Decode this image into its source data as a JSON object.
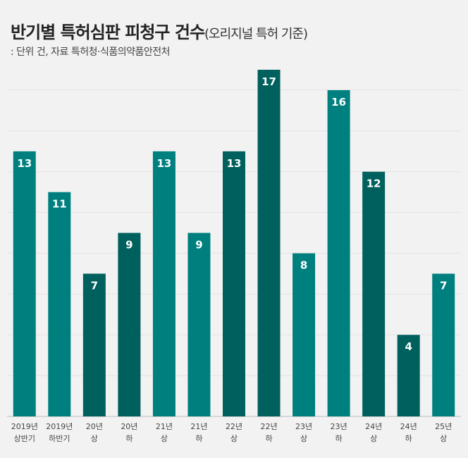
{
  "chart_data": {
    "type": "bar",
    "title": "반기별 특허심판 피청구 건수",
    "title_suffix": "(오리지널 특허 기준)",
    "subtitle": ": 단위 건, 자료 특허청·식품의약품안전처",
    "categories": [
      [
        "2019년",
        "상반기"
      ],
      [
        "2019년",
        "하반기"
      ],
      [
        "20년",
        "상"
      ],
      [
        "20년",
        "하"
      ],
      [
        "21년",
        "상"
      ],
      [
        "21년",
        "하"
      ],
      [
        "22년",
        "상"
      ],
      [
        "22년",
        "하"
      ],
      [
        "23년",
        "상"
      ],
      [
        "23년",
        "하"
      ],
      [
        "24년",
        "상"
      ],
      [
        "24년",
        "하"
      ],
      [
        "25년",
        "상"
      ]
    ],
    "values": [
      13,
      11,
      7,
      9,
      13,
      9,
      13,
      17,
      8,
      16,
      12,
      4,
      7
    ],
    "ylim": [
      0,
      17
    ],
    "grid": true,
    "colors": {
      "light": "#007f7f",
      "dark": "#00605d",
      "pattern": [
        "light",
        "light",
        "dark",
        "dark",
        "light",
        "light",
        "dark",
        "dark",
        "light",
        "light",
        "dark",
        "dark",
        "light"
      ]
    }
  }
}
